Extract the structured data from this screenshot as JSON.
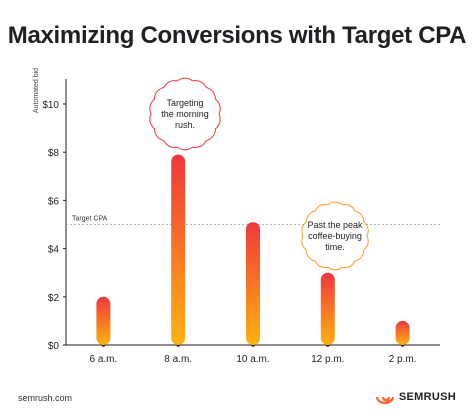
{
  "title": "Maximizing Conversions with Target CPA",
  "chart_data": {
    "type": "bar",
    "title": "Maximizing Conversions with Target CPA",
    "ylabel": "Automated bid",
    "xlabel": "",
    "categories": [
      "6 a.m.",
      "8 a.m.",
      "10 a.m.",
      "12 p.m.",
      "2 p.m."
    ],
    "values": [
      2,
      7.9,
      5.1,
      3,
      1
    ],
    "ylim": [
      0,
      10
    ],
    "yticks": [
      0,
      2,
      4,
      6,
      8,
      10
    ],
    "ytick_labels": [
      "$0",
      "$2",
      "$4",
      "$6",
      "$8",
      "$10"
    ],
    "reference_line": {
      "label": "Target CPA",
      "value": 5
    },
    "annotations": [
      {
        "text": "Targeting the morning rush.",
        "category": "8 a.m."
      },
      {
        "text": "Past the peak coffee-buying time.",
        "category": "12 p.m."
      }
    ],
    "colors": {
      "bar_top": "#f0373b",
      "bar_bottom": "#ffb30f",
      "bubble_border": "#f0373b",
      "bubble_border_alt": "#ff9a2e"
    },
    "grid": false
  },
  "footer": {
    "source": "semrush.com",
    "brand": "SEMRUSH"
  }
}
